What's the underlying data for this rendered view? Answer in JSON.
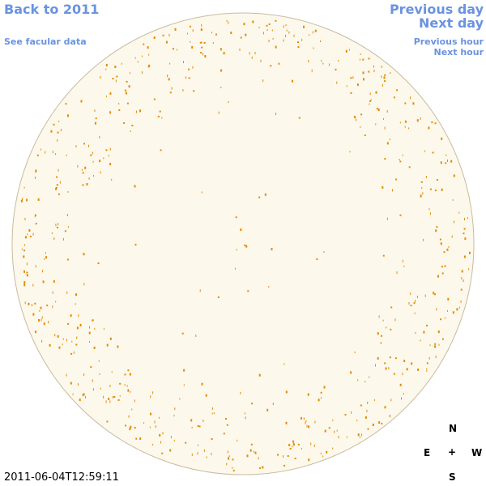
{
  "nav": {
    "back_year": "Back to 2011",
    "facular_data": "See facular data",
    "previous_day": "Previous day",
    "next_day": "Next day",
    "previous_hour": "Previous hour",
    "next_hour": "Next hour"
  },
  "timestamp": "2011-06-04T12:59:11",
  "compass": {
    "north": "N",
    "east": "E",
    "center": "+",
    "west": "W",
    "south": "S"
  }
}
